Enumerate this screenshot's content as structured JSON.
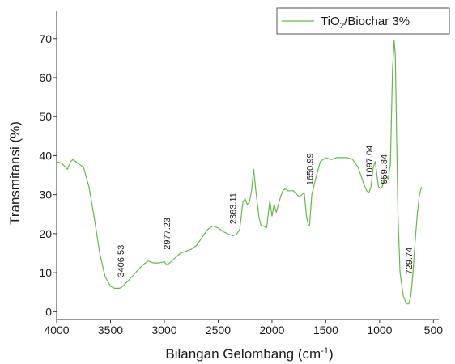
{
  "chart_data": {
    "type": "line",
    "title": "",
    "xlabel": "Bilangan Gelombang (cm",
    "xlabel_sup": "-1",
    "xlabel_close": ")",
    "ylabel": "Transmitansi (%)",
    "xlim": [
      4000,
      450
    ],
    "ylim": [
      -2,
      77
    ],
    "x_reversed": true,
    "x_ticks": [
      4000,
      3500,
      3000,
      2500,
      2000,
      1500,
      1000,
      500
    ],
    "y_ticks": [
      0,
      10,
      20,
      30,
      40,
      50,
      60,
      70
    ],
    "grid": false,
    "legend_position": "top-right",
    "legend": {
      "prefix": "TiO",
      "sub": "2",
      "suffix": "/Biochar 3%"
    },
    "color": "#66b84a",
    "series": [
      {
        "name": "TiO2/Biochar 3%",
        "x": [
          4000,
          3950,
          3900,
          3870,
          3850,
          3800,
          3750,
          3700,
          3650,
          3600,
          3550,
          3500,
          3460,
          3420,
          3400,
          3350,
          3300,
          3250,
          3200,
          3150,
          3100,
          3050,
          3000,
          2977,
          2950,
          2900,
          2850,
          2800,
          2750,
          2700,
          2650,
          2600,
          2550,
          2500,
          2450,
          2400,
          2363,
          2330,
          2300,
          2270,
          2250,
          2230,
          2210,
          2190,
          2170,
          2150,
          2120,
          2100,
          2080,
          2050,
          2020,
          2000,
          1980,
          1960,
          1950,
          1940,
          1920,
          1900,
          1880,
          1850,
          1800,
          1750,
          1720,
          1700,
          1680,
          1660,
          1651,
          1630,
          1600,
          1550,
          1500,
          1450,
          1400,
          1350,
          1300,
          1250,
          1200,
          1150,
          1120,
          1100,
          1080,
          1060,
          1040,
          1030,
          1010,
          990,
          975,
          960,
          940,
          920,
          900,
          880,
          865,
          855,
          845,
          830,
          810,
          780,
          750,
          730,
          710,
          690,
          670,
          650,
          630,
          610
        ],
        "y": [
          38.5,
          38,
          36.5,
          38.5,
          39,
          38,
          37,
          32,
          24,
          15,
          9,
          6.5,
          6,
          6,
          6.2,
          7.5,
          9,
          10.5,
          12,
          13,
          12.5,
          12.5,
          12.8,
          12,
          12.5,
          13.8,
          15,
          15.5,
          16,
          17,
          19,
          21,
          22,
          21.5,
          20.5,
          19.8,
          19.5,
          19.8,
          21,
          28,
          29,
          27.5,
          28,
          31,
          36.5,
          31,
          24,
          22,
          22,
          21.5,
          28.5,
          24.5,
          27.5,
          25.5,
          26.5,
          27.5,
          29.5,
          31,
          31.5,
          31,
          31,
          29.5,
          30,
          30.5,
          24.5,
          22,
          22,
          30,
          33.5,
          38.5,
          39.5,
          39,
          39.5,
          39.5,
          39.5,
          39,
          37,
          33,
          31,
          30.5,
          32,
          37,
          38.5,
          36,
          32,
          31.5,
          32,
          34,
          35,
          34,
          38,
          62,
          69.5,
          66,
          50,
          25,
          10,
          4,
          2,
          2,
          4,
          10,
          18,
          25,
          30,
          32
        ]
      }
    ],
    "annotations": [
      {
        "text": "3406.53",
        "x": 3406,
        "y": 13
      },
      {
        "text": "2977.23",
        "x": 2977,
        "y": 20
      },
      {
        "text": "2363.11",
        "x": 2363,
        "y": 26.5
      },
      {
        "text": "1650.99",
        "x": 1651,
        "y": 36.5
      },
      {
        "text": "1097.04",
        "x": 1097,
        "y": 38.5
      },
      {
        "text": "959..84",
        "x": 960,
        "y": 36.5
      },
      {
        "text": "729.74",
        "x": 730,
        "y": 13
      }
    ]
  }
}
